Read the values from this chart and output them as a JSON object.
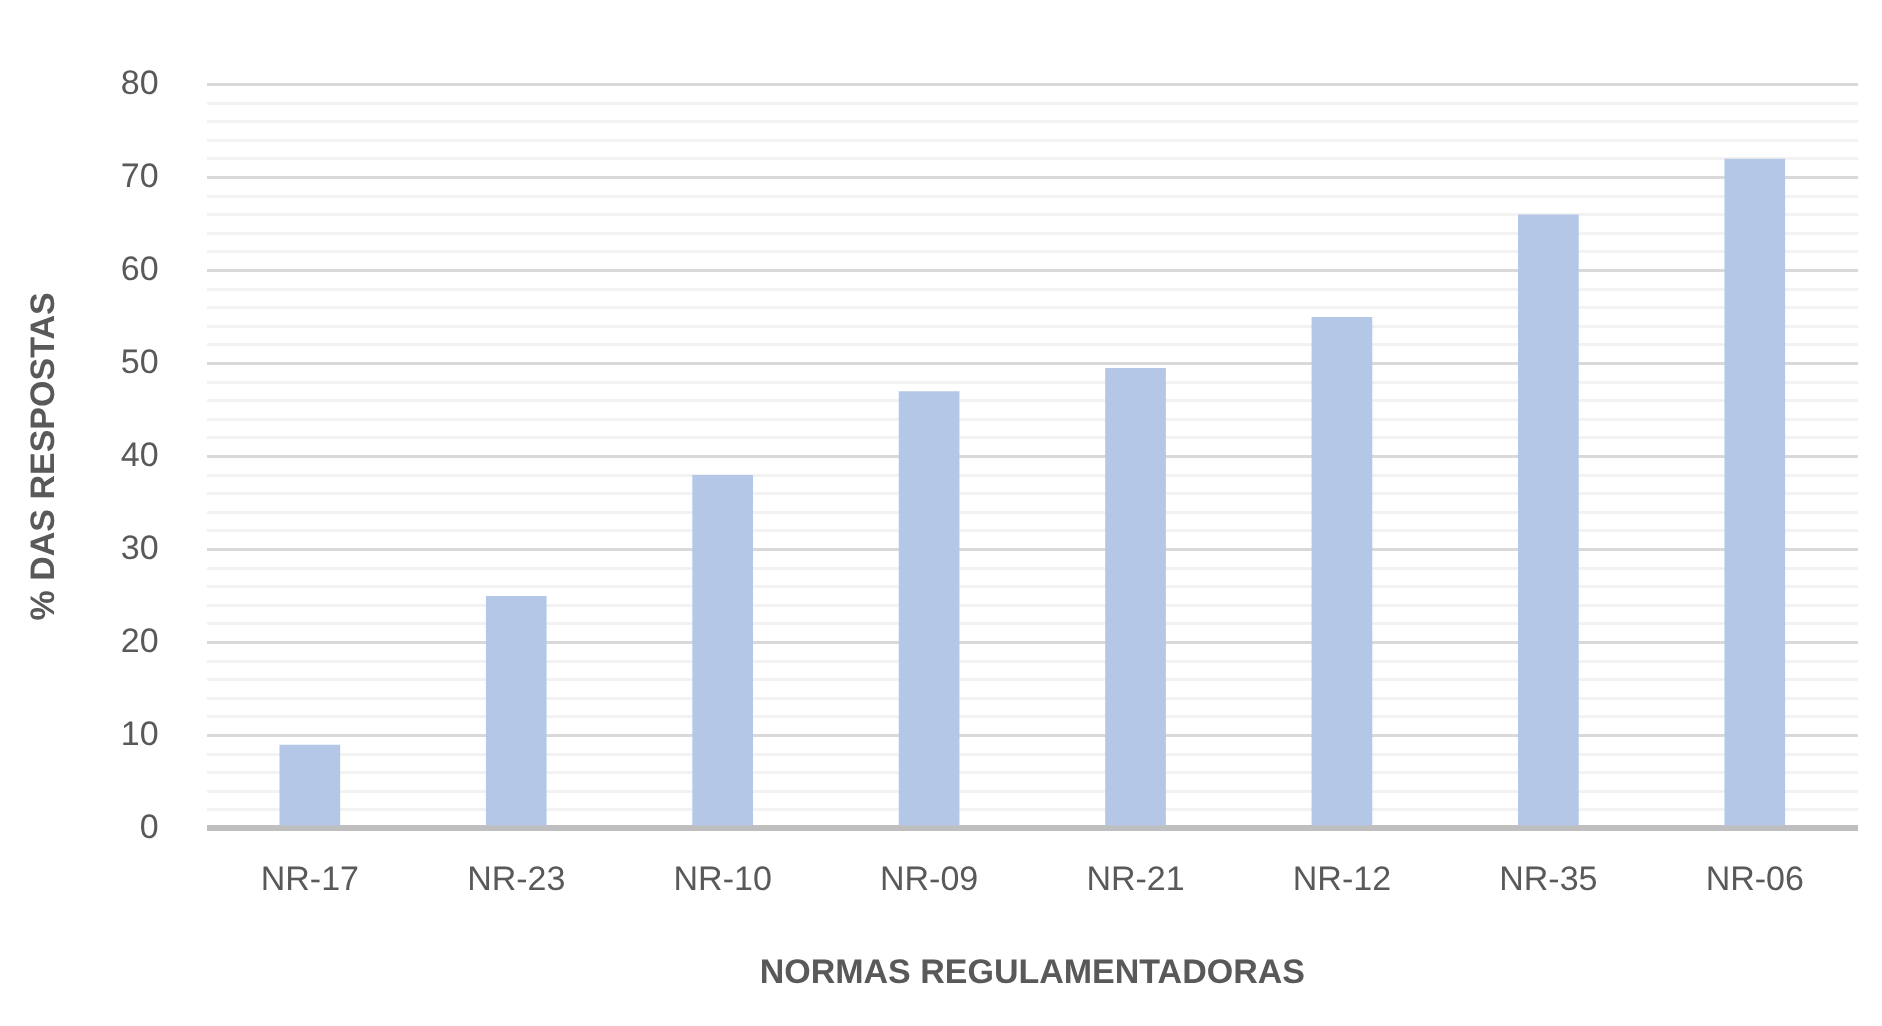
{
  "chart_data": {
    "type": "bar",
    "xlabel": "NORMAS REGULAMENTADORAS",
    "ylabel": "% DAS RESPOSTAS",
    "categories": [
      "NR-17",
      "NR-23",
      "NR-10",
      "NR-09",
      "NR-21",
      "NR-12",
      "NR-35",
      "NR-06"
    ],
    "values": [
      9,
      25,
      38,
      47,
      49.5,
      55,
      66,
      72
    ],
    "color": "#b4c7e7",
    "ylim": [
      0,
      80
    ],
    "yticks": [
      0,
      {
        "value": 2,
        "label": null
      },
      {
        "value": 4,
        "label": null
      },
      {
        "value": 6,
        "label": null
      },
      {
        "value": 8,
        "label": null
      },
      10,
      {
        "value": 12,
        "label": null
      },
      {
        "value": 14,
        "label": null
      },
      {
        "value": 16,
        "label": null
      },
      {
        "value": 18,
        "label": null
      },
      20,
      {
        "value": 22,
        "label": null
      },
      {
        "value": 24,
        "label": null
      },
      {
        "value": 26,
        "label": null
      },
      {
        "value": 28,
        "label": null
      },
      30,
      {
        "value": 32,
        "label": null
      },
      {
        "value": 34,
        "label": null
      },
      {
        "value": 36,
        "label": null
      },
      {
        "value": 38,
        "label": null
      },
      40,
      {
        "value": 42,
        "label": null
      },
      {
        "value": 44,
        "label": null
      },
      {
        "value": 46,
        "label": null
      },
      {
        "value": 48,
        "label": null
      },
      50,
      {
        "value": 52,
        "label": null
      },
      {
        "value": 54,
        "label": null
      },
      {
        "value": 56,
        "label": null
      },
      {
        "value": 58,
        "label": null
      },
      60,
      {
        "value": 62,
        "label": null
      },
      {
        "value": 64,
        "label": null
      },
      {
        "value": 66,
        "label": null
      },
      {
        "value": 68,
        "label": null
      },
      70,
      {
        "value": 72,
        "label": null
      },
      {
        "value": 74,
        "label": null
      },
      {
        "value": 76,
        "label": null
      },
      {
        "value": 78,
        "label": null
      },
      80
    ],
    "grid": "y",
    "legend": false
  }
}
